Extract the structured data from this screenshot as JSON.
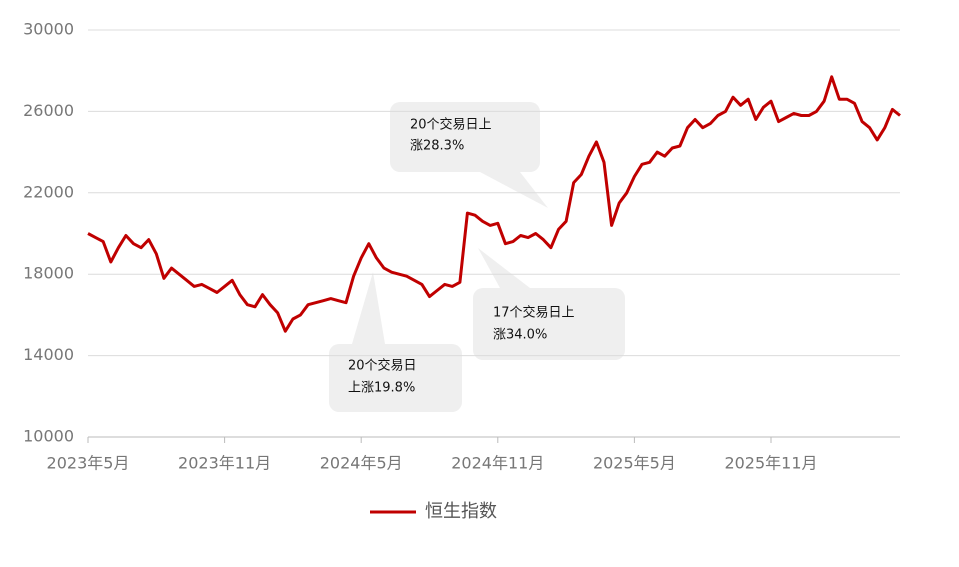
{
  "chart_data": {
    "type": "line",
    "categories": [
      "2023年5月",
      null,
      null,
      null,
      null,
      null,
      null,
      null,
      null,
      null,
      null,
      null,
      null,
      null,
      null,
      null,
      null,
      null,
      "2023年11月",
      null,
      null,
      null,
      null,
      null,
      null,
      null,
      null,
      null,
      null,
      null,
      null,
      null,
      null,
      null,
      null,
      null,
      "2024年5月",
      null,
      null,
      null,
      null,
      null,
      null,
      null,
      null,
      null,
      null,
      null,
      null,
      null,
      null,
      null,
      null,
      null,
      "2024年11月",
      null,
      null,
      null,
      null,
      null,
      null,
      null,
      null,
      null,
      null,
      null,
      null,
      null,
      null,
      null,
      null,
      null,
      "2025年5月",
      null,
      null,
      null,
      null,
      null,
      null,
      null,
      null,
      null,
      null,
      null,
      null,
      null,
      null,
      null,
      null,
      null,
      "2025年11月",
      null,
      null,
      null,
      null,
      null,
      null,
      null,
      null,
      null,
      null,
      null,
      null,
      null,
      null,
      null,
      null,
      null
    ],
    "series": [
      {
        "name": "恒生指数",
        "color": "#c00000",
        "values": [
          20000,
          19800,
          19600,
          18600,
          19300,
          19900,
          19500,
          19300,
          19700,
          19000,
          17800,
          18300,
          18000,
          17700,
          17400,
          17500,
          17300,
          17100,
          17400,
          17700,
          17000,
          16500,
          16400,
          17000,
          16500,
          16100,
          15200,
          15800,
          16000,
          16500,
          16600,
          16700,
          16800,
          16700,
          16600,
          17900,
          18800,
          19500,
          18800,
          18300,
          18100,
          18000,
          17900,
          17700,
          17500,
          16900,
          17200,
          17500,
          17400,
          17600,
          21000,
          20900,
          20600,
          20400,
          20500,
          19500,
          19600,
          19900,
          19800,
          20000,
          19700,
          19300,
          20200,
          20600,
          22500,
          22900,
          23800,
          24500,
          23500,
          20400,
          21500,
          22000,
          22800,
          23400,
          23500,
          24000,
          23800,
          24200,
          24300,
          25200,
          25600,
          25200,
          25400,
          25800,
          26000,
          26700,
          26300,
          26600,
          25600,
          26200,
          26500,
          25500,
          25700,
          25900,
          25800,
          25800,
          26000,
          26500,
          27700,
          26600,
          26600,
          26400,
          25500,
          25200,
          24600,
          25200,
          26100,
          25800
        ]
      }
    ],
    "ylim": [
      10000,
      30000
    ],
    "yticks": [
      10000,
      14000,
      18000,
      22000,
      26000,
      30000
    ],
    "grid": true,
    "legend": "bottom",
    "annotations": [
      {
        "lines": [
          "20个交易日上",
          "涨28.3%"
        ]
      },
      {
        "lines": [
          "17个交易日上",
          "涨34.0%"
        ]
      },
      {
        "lines": [
          "20个交易日",
          "上涨19.8%"
        ]
      }
    ]
  }
}
